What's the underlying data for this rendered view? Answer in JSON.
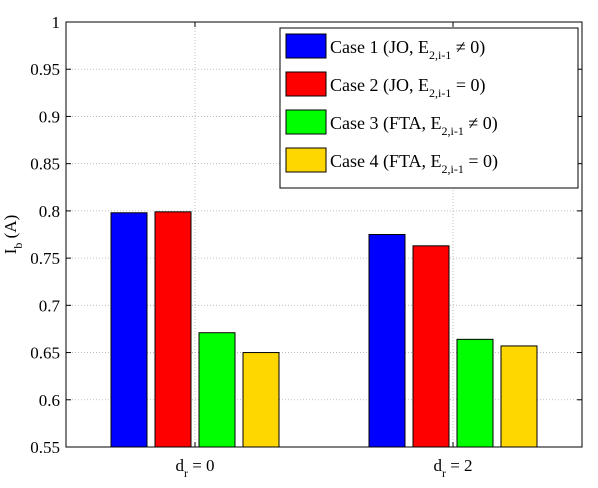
{
  "chart_data": {
    "type": "bar",
    "categories": [
      {
        "main": "d",
        "sub": "r",
        "rest": " = 0"
      },
      {
        "main": "d",
        "sub": "r",
        "rest": " = 2"
      }
    ],
    "ylabel": {
      "main": "I",
      "sub": "b",
      "rest": " (A)"
    },
    "ylim": [
      0.55,
      1
    ],
    "yticks": [
      "0.55",
      "0.6",
      "0.65",
      "0.7",
      "0.75",
      "0.8",
      "0.85",
      "0.9",
      "0.95",
      "1"
    ],
    "grid": true,
    "legend_position": "top-right",
    "series": [
      {
        "name": "Case 1 (JO, E2,i-1 ≠ 0)",
        "label_main": "Case 1 (JO, E",
        "label_sub": "2,i-1",
        "label_rest": " ≠ 0)",
        "color": "#0000ff",
        "values": [
          0.798,
          0.775
        ]
      },
      {
        "name": "Case 2 (JO, E2,i-1 = 0)",
        "label_main": "Case 2 (JO, E",
        "label_sub": "2,i-1",
        "label_rest": " = 0)",
        "color": "#ff0000",
        "values": [
          0.799,
          0.763
        ]
      },
      {
        "name": "Case 3 (FTA, E2,i-1 ≠ 0)",
        "label_main": "Case 3 (FTA, E",
        "label_sub": "2,i-1",
        "label_rest": " ≠ 0)",
        "color": "#00ff00",
        "values": [
          0.671,
          0.664
        ]
      },
      {
        "name": "Case 4 (FTA, E2,i-1 = 0)",
        "label_main": "Case 4 (FTA, E",
        "label_sub": "2,i-1",
        "label_rest": " = 0)",
        "color": "#ffd700",
        "values": [
          0.65,
          0.657
        ]
      }
    ]
  }
}
